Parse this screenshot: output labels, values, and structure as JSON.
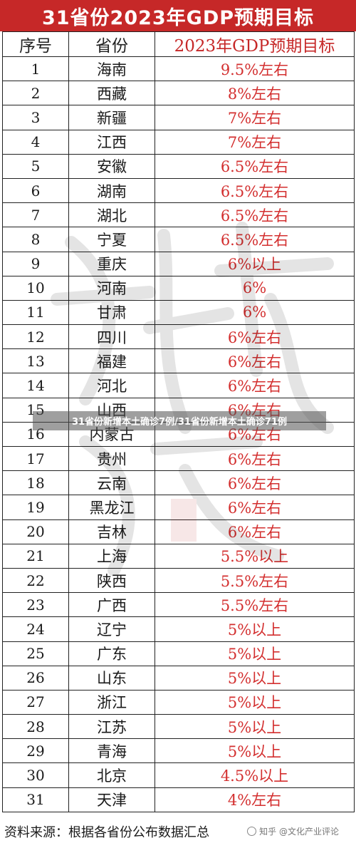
{
  "title": "31省份2023年GDP预期目标",
  "headers": {
    "rank": "序号",
    "province": "省份",
    "target": "2023年GDP预期目标"
  },
  "rows": [
    {
      "rank": "1",
      "province": "海南",
      "target": "9.5%左右"
    },
    {
      "rank": "2",
      "province": "西藏",
      "target": "8%左右"
    },
    {
      "rank": "3",
      "province": "新疆",
      "target": "7%左右"
    },
    {
      "rank": "4",
      "province": "江西",
      "target": "7%左右"
    },
    {
      "rank": "5",
      "province": "安徽",
      "target": "6.5%左右"
    },
    {
      "rank": "6",
      "province": "湖南",
      "target": "6.5%左右"
    },
    {
      "rank": "7",
      "province": "湖北",
      "target": "6.5%左右"
    },
    {
      "rank": "8",
      "province": "宁夏",
      "target": "6.5%左右"
    },
    {
      "rank": "9",
      "province": "重庆",
      "target": "6%以上"
    },
    {
      "rank": "10",
      "province": "河南",
      "target": "6%"
    },
    {
      "rank": "11",
      "province": "甘肃",
      "target": "6%"
    },
    {
      "rank": "12",
      "province": "四川",
      "target": "6%左右"
    },
    {
      "rank": "13",
      "province": "福建",
      "target": "6%左右"
    },
    {
      "rank": "14",
      "province": "河北",
      "target": "6%左右"
    },
    {
      "rank": "15",
      "province": "山西",
      "target": "6%左右"
    },
    {
      "rank": "16",
      "province": "内蒙古",
      "target": "6%左右"
    },
    {
      "rank": "17",
      "province": "贵州",
      "target": "6%左右"
    },
    {
      "rank": "18",
      "province": "云南",
      "target": "6%左右"
    },
    {
      "rank": "19",
      "province": "黑龙江",
      "target": "6%左右"
    },
    {
      "rank": "20",
      "province": "吉林",
      "target": "6%左右"
    },
    {
      "rank": "21",
      "province": "上海",
      "target": "5.5%以上"
    },
    {
      "rank": "22",
      "province": "陕西",
      "target": "5.5%左右"
    },
    {
      "rank": "23",
      "province": "广西",
      "target": "5.5%左右"
    },
    {
      "rank": "24",
      "province": "辽宁",
      "target": "5%以上"
    },
    {
      "rank": "25",
      "province": "广东",
      "target": "5%以上"
    },
    {
      "rank": "26",
      "province": "山东",
      "target": "5%以上"
    },
    {
      "rank": "27",
      "province": "浙江",
      "target": "5%以上"
    },
    {
      "rank": "28",
      "province": "江苏",
      "target": "5%以上"
    },
    {
      "rank": "29",
      "province": "青海",
      "target": "5%以上"
    },
    {
      "rank": "30",
      "province": "北京",
      "target": "4.5%以上"
    },
    {
      "rank": "31",
      "province": "天津",
      "target": "4%左右"
    }
  ],
  "overlay_caption": "31省份新增本土确诊7例/31省份新增本土确诊71例",
  "source": "资料来源：根据各省份公布数据汇总",
  "credit": "知乎 @文化产业评论",
  "colors": {
    "title_bg": "#c62828",
    "target_text": "#d32f2f",
    "grid": "#222222"
  }
}
